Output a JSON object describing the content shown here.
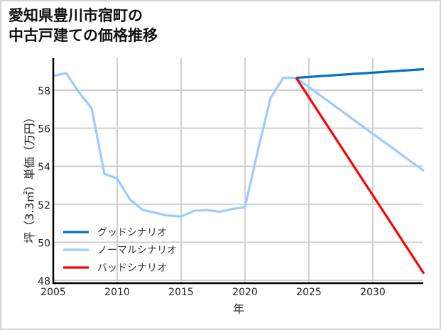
{
  "title_line1": "愛知県豊川市宿町の",
  "title_line2": "中古戸建ての価格推移",
  "chart_data": {
    "type": "line",
    "title": "愛知県豊川市宿町の中古戸建ての価格推移",
    "xlabel": "年",
    "ylabel": "坪（3.3㎡）単価（万円）",
    "xlim": [
      2005,
      2034
    ],
    "ylim": [
      47.9,
      59.6
    ],
    "xticks": [
      2005,
      2010,
      2015,
      2020,
      2025,
      2030
    ],
    "yticks": [
      48,
      50,
      52,
      54,
      56,
      58
    ],
    "grid": true,
    "legend_position": "lower left",
    "series": [
      {
        "name": "ノーマルシナリオ",
        "color": "#99ccff",
        "x": [
          2005,
          2006,
          2007,
          2008,
          2009,
          2010,
          2011,
          2012,
          2013,
          2014,
          2015,
          2016,
          2017,
          2018,
          2019,
          2020,
          2021,
          2022,
          2023,
          2024,
          2034
        ],
        "values": [
          58.75,
          58.9,
          57.9,
          57.05,
          53.6,
          53.35,
          52.25,
          51.7,
          51.55,
          51.4,
          51.35,
          51.65,
          51.7,
          51.6,
          51.75,
          51.85,
          54.8,
          57.6,
          58.65,
          58.65,
          53.75
        ]
      },
      {
        "name": "グッドシナリオ",
        "color": "#0072c6",
        "x": [
          2024,
          2034
        ],
        "values": [
          58.65,
          59.1
        ]
      },
      {
        "name": "バッドシナリオ",
        "color": "#ff0000",
        "x": [
          2024,
          2034
        ],
        "values": [
          58.65,
          48.35
        ]
      }
    ],
    "legend": [
      "グッドシナリオ",
      "ノーマルシナリオ",
      "バッドシナリオ"
    ]
  }
}
